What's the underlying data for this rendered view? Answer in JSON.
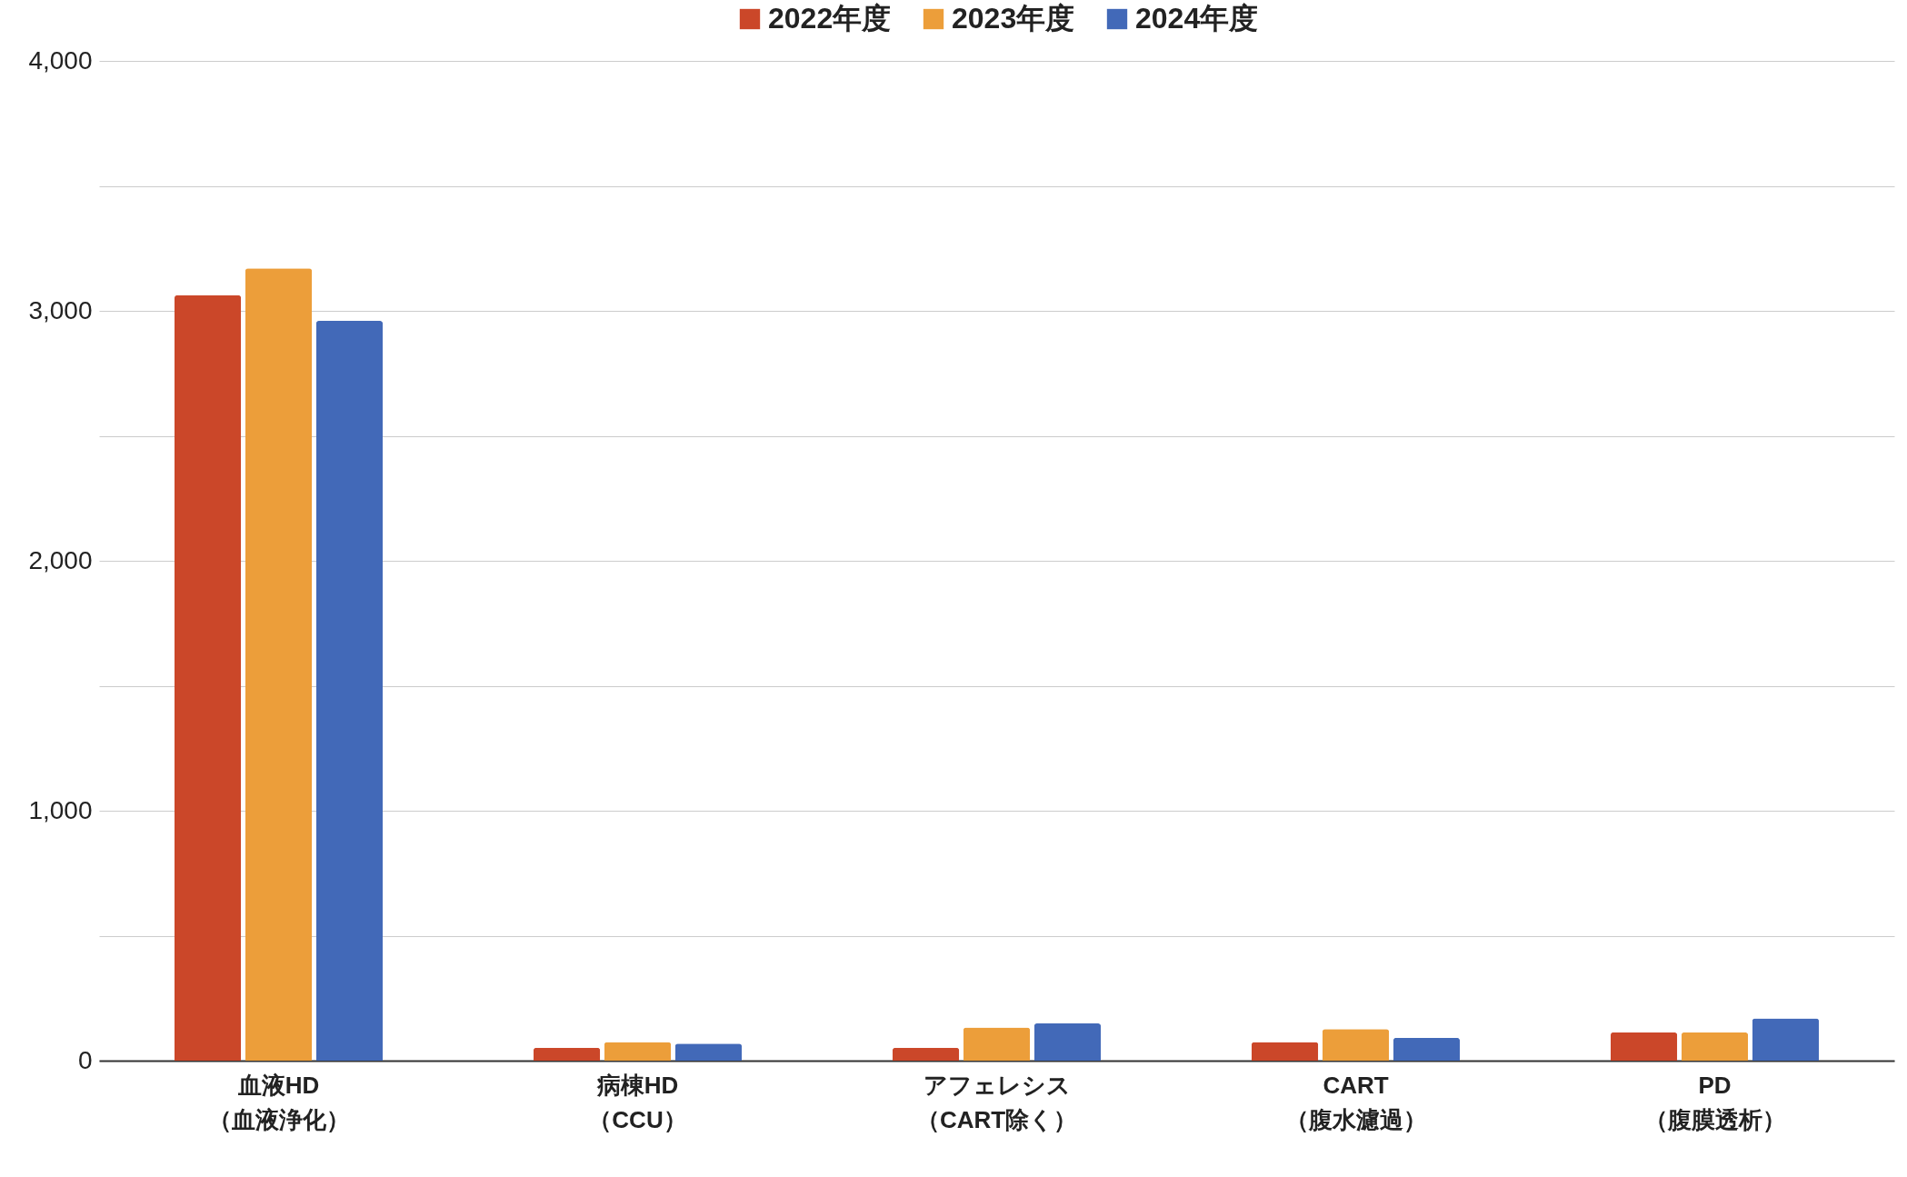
{
  "chart_data": {
    "type": "bar",
    "categories": [
      "血液HD（血液浄化）",
      "病棟HD（CCU）",
      "アフェレシス（CART除く）",
      "CART（腹水濾過）",
      "PD（腹膜透析）"
    ],
    "series": [
      {
        "name": "2022年度",
        "color": "#cb4729",
        "values": [
          3062,
          52,
          52,
          75,
          113
        ]
      },
      {
        "name": "2023年度",
        "color": "#ec9e3a",
        "values": [
          3170,
          75,
          133,
          126,
          113
        ]
      },
      {
        "name": "2024年度",
        "color": "#4269b8",
        "values": [
          2960,
          68,
          149,
          91,
          169
        ]
      }
    ],
    "ylim": [
      0,
      4000
    ],
    "yticks": [
      0,
      {
        "value": 500,
        "label": null
      },
      {
        "value": 1000,
        "label": "1,000"
      },
      {
        "value": 1500,
        "label": null
      },
      {
        "value": 2000,
        "label": "2,000"
      },
      {
        "value": 2500,
        "label": null
      },
      {
        "value": 3000,
        "label": "3,000"
      },
      {
        "value": 3500,
        "label": null
      },
      {
        "value": 4000,
        "label": "4,000"
      }
    ],
    "grid": "y",
    "legend": "top"
  }
}
